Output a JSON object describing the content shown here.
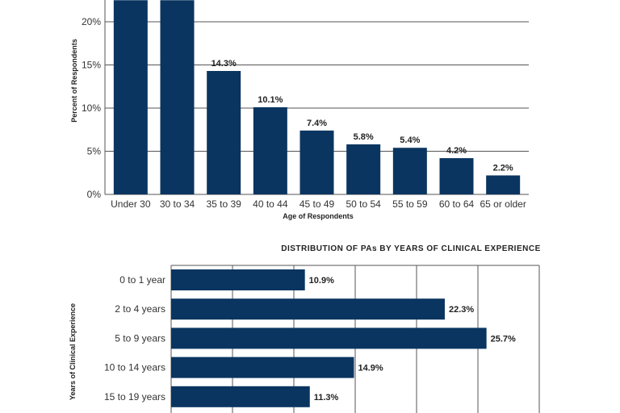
{
  "chart_data": [
    {
      "type": "bar",
      "title": "",
      "xlabel": "Age of Respondents",
      "ylabel": "Percent of Respondents",
      "ylim": [
        0,
        22.5
      ],
      "yticks": [
        "0%",
        "5%",
        "10%",
        "15%",
        "20%"
      ],
      "categories": [
        "Under 30",
        "30 to 34",
        "35 to 39",
        "40 to 44",
        "45 to 49",
        "50 to 54",
        "55 to 59",
        "60 to 64",
        "65 or older"
      ],
      "values": [
        22.5,
        22.5,
        14.3,
        10.1,
        7.4,
        5.8,
        5.4,
        4.2,
        2.2
      ],
      "labels": [
        "",
        "",
        "14.3%",
        "10.1%",
        "7.4%",
        "5.8%",
        "5.4%",
        "4.2%",
        "2.2%"
      ]
    },
    {
      "type": "bar",
      "orientation": "horizontal",
      "title": "DISTRIBUTION OF PAs BY YEARS OF CLINICAL EXPERIENCE",
      "ylabel": "Years of Clinical Experience",
      "xlim": [
        0,
        30
      ],
      "categories": [
        "0 to 1 year",
        "2 to 4 years",
        "5 to 9 years",
        "10 to 14 years",
        "15 to 19 years"
      ],
      "values": [
        10.9,
        22.3,
        25.7,
        14.9,
        11.3
      ],
      "labels": [
        "10.9%",
        "22.3%",
        "25.7%",
        "14.9%",
        "11.3%"
      ]
    }
  ],
  "colors": {
    "bar": "#0a3560",
    "grid": "#555555"
  }
}
